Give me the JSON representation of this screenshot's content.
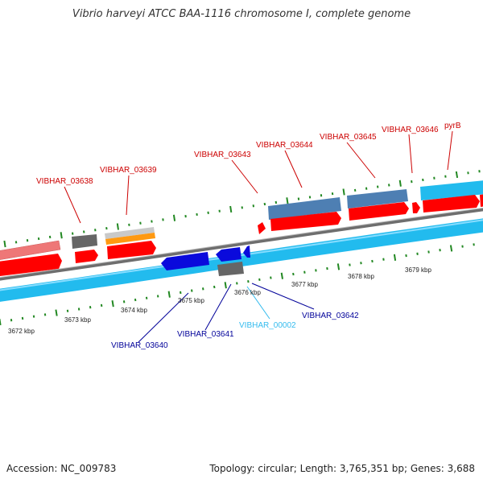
{
  "title": "Vibrio harveyi ATCC BAA-1116 chromosome I, complete genome",
  "footer": {
    "accession": "Accession: NC_009783",
    "info": "Topology: circular; Length: 3,765,351 bp; Genes: 3,688"
  },
  "colors": {
    "red_gene": "#ff0000",
    "red_label": "#cc0000",
    "blue_label": "#000099",
    "cyan_label": "#33bbee",
    "tick": "#228822",
    "backbone": "#777777"
  },
  "ruler": {
    "unit": "kbp",
    "ticks": [
      "3672 kbp",
      "3673 kbp",
      "3674 kbp",
      "3675 kbp",
      "3676 kbp",
      "3677 kbp",
      "3678 kbp",
      "3679 kbp"
    ]
  },
  "upper_labels": [
    "VIBHAR_03638",
    "VIBHAR_03639",
    "VIBHAR_03643",
    "VIBHAR_03644",
    "VIBHAR_03645",
    "VIBHAR_03646",
    "pyrB"
  ],
  "lower_labels": [
    "VIBHAR_03640",
    "VIBHAR_03641",
    "VIBHAR_00002",
    "VIBHAR_03642"
  ]
}
